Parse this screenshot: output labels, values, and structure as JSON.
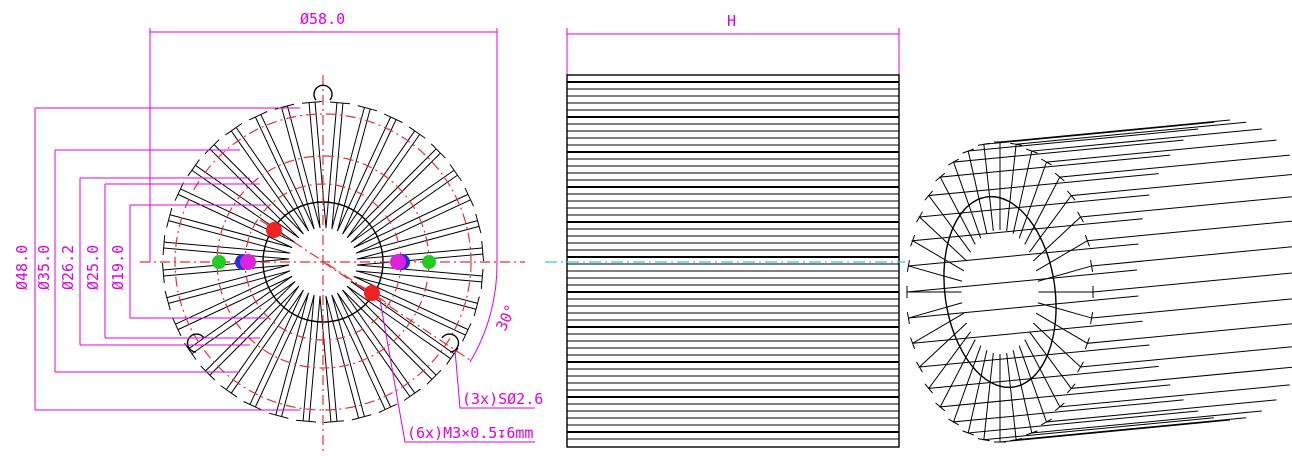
{
  "dimensions": {
    "d58": "Ø58.0",
    "d48": "Ø48.0",
    "d35": "Ø35.0",
    "d26": "Ø26.2",
    "d25": "Ø25.0",
    "d19": "Ø19.0",
    "height": "H",
    "angle": "30°"
  },
  "callouts": {
    "holes": "(3x)SØ2.6",
    "threads": "(6x)M3×0.5↧6mm"
  },
  "colors": {
    "dimension": "#e000e0",
    "centerline": "#e53333",
    "axis": "#33cccc",
    "marker_red": "#ee2222",
    "marker_green": "#22cc22",
    "marker_blue": "#2233dd",
    "marker_magenta": "#dd22dd"
  },
  "views": [
    "front-view",
    "side-view",
    "isometric-view"
  ]
}
